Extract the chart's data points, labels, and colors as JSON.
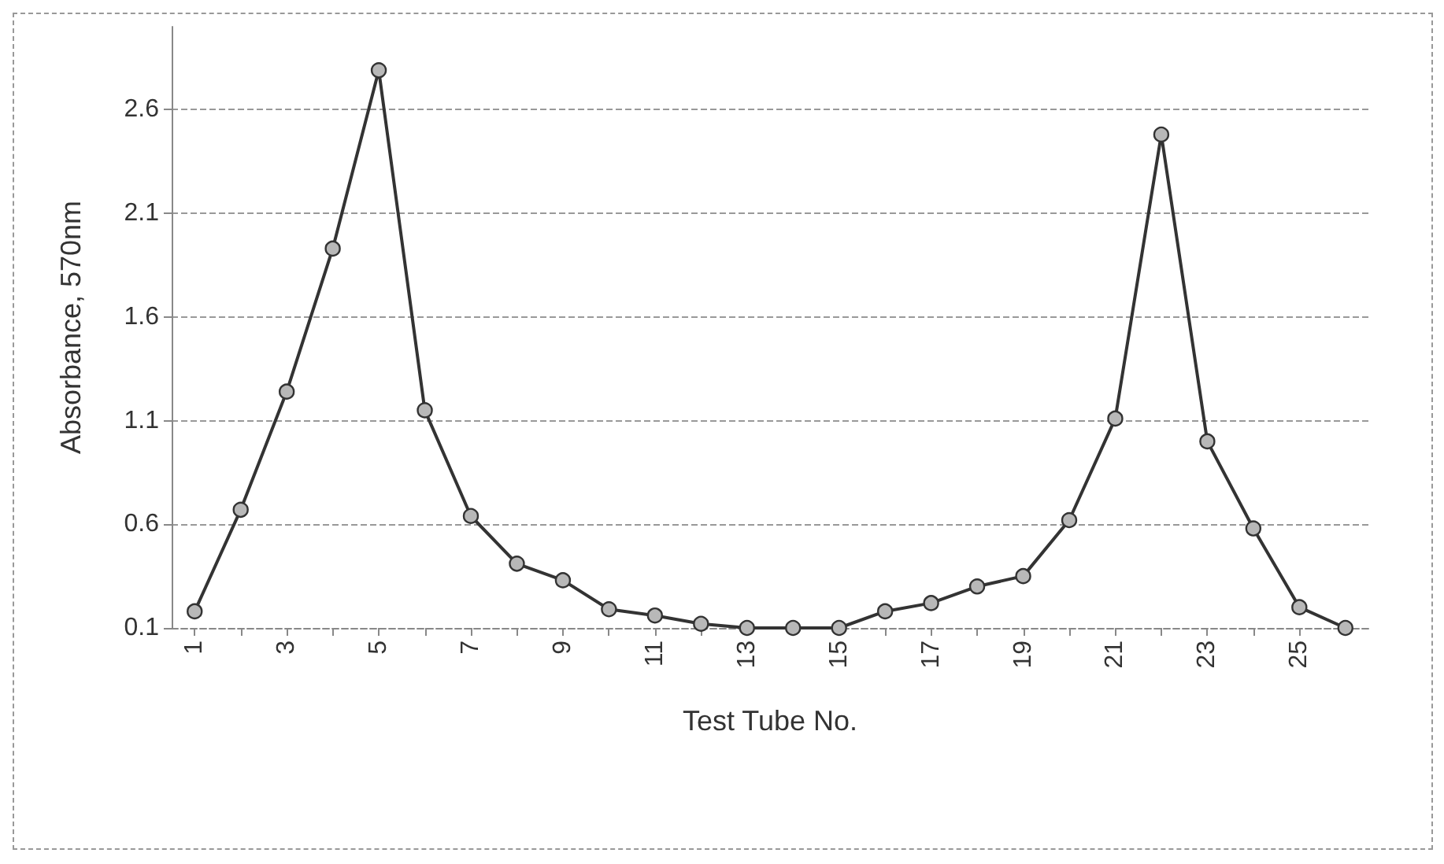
{
  "chart_data": {
    "type": "line",
    "xlabel": "Test Tube No.",
    "ylabel": "Absorbance, 570nm",
    "categories": [
      "1",
      null,
      "3",
      null,
      "5",
      null,
      "7",
      null,
      "9",
      null,
      "11",
      null,
      "13",
      null,
      "15",
      null,
      "17",
      null,
      "19",
      null,
      "21",
      null,
      "23",
      null,
      "25",
      null
    ],
    "series": [
      {
        "color": "#333333",
        "values": [
          0.18,
          0.67,
          1.24,
          1.93,
          2.79,
          1.15,
          0.64,
          0.41,
          0.33,
          0.19,
          0.16,
          0.12,
          0.1,
          0.1,
          0.1,
          0.18,
          0.22,
          0.3,
          0.35,
          0.62,
          1.11,
          2.48,
          1.0,
          0.58,
          0.2,
          0.1
        ]
      }
    ],
    "ylim": [
      0.1,
      3.0
    ],
    "yticks": [
      0.1,
      0.6,
      1.1,
      1.6,
      2.1,
      2.6
    ],
    "grid": "y",
    "marker": "circle",
    "line_style": "solid"
  }
}
